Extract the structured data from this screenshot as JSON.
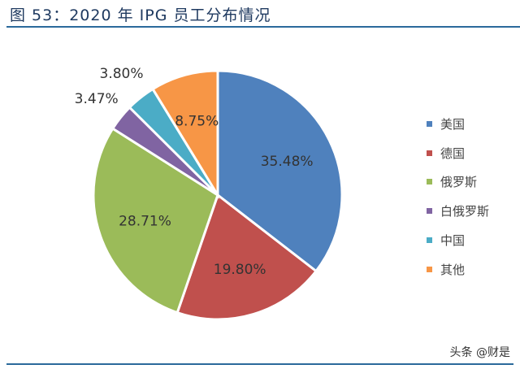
{
  "title": "图 53：2020 年 IPG 员工分布情况",
  "watermark": "头条 @财是",
  "chart_data": {
    "type": "pie",
    "title": "图 53：2020 年 IPG 员工分布情况",
    "categories": [
      "美国",
      "德国",
      "俄罗斯",
      "白俄罗斯",
      "中国",
      "其他"
    ],
    "values": [
      35.48,
      19.8,
      28.71,
      3.47,
      3.8,
      8.75
    ],
    "labels": [
      "35.48%",
      "19.80%",
      "28.71%",
      "3.47%",
      "3.80%",
      "8.75%"
    ],
    "colors": [
      "#4f81bd",
      "#c0504d",
      "#9bbb59",
      "#8064a2",
      "#4bacc6",
      "#f79646"
    ],
    "legend_position": "right",
    "start": "top-clockwise"
  }
}
